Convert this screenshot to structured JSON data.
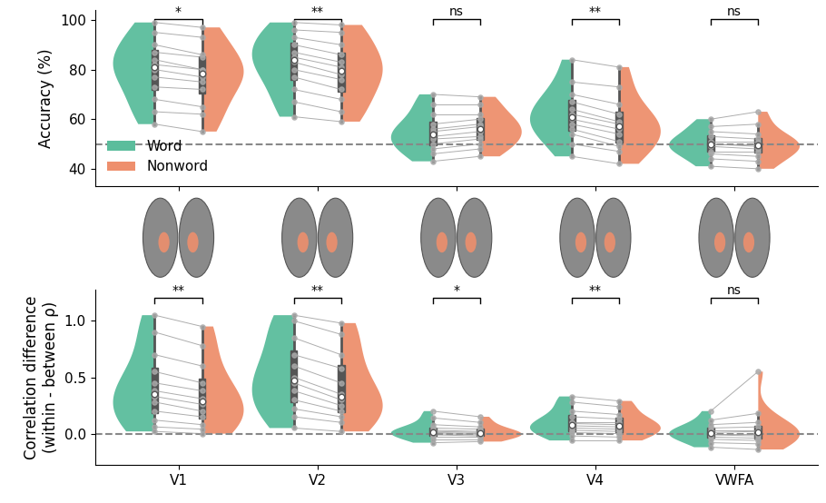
{
  "chart_data": [
    {
      "type": "violin",
      "ylabel": "Accuracy (%)",
      "categories": [
        "V1",
        "V2",
        "V3",
        "V4",
        "VWFA"
      ],
      "series": [
        {
          "name": "Word",
          "color": "#5bbd9c",
          "values": [
            [
              99,
              95,
              90,
              87,
              84,
              82,
              80,
              77,
              73,
              68,
              63,
              58
            ],
            [
              99,
              96,
              93,
              90,
              87,
              85,
              83,
              80,
              77,
              72,
              67,
              61
            ],
            [
              70,
              66,
              62,
              58,
              56,
              55,
              53,
              52,
              50,
              48,
              46,
              43
            ],
            [
              84,
              75,
              70,
              67,
              64,
              62,
              60,
              58,
              56,
              54,
              50,
              45
            ],
            [
              60,
              57,
              55,
              53,
              51,
              50,
              50,
              49,
              47,
              46,
              44,
              41
            ]
          ]
        },
        {
          "name": "Nonword",
          "color": "#ee8f6d",
          "values": [
            [
              97,
              93,
              86,
              85,
              80,
              80,
              77,
              75,
              72,
              65,
              62,
              55
            ],
            [
              98,
              95,
              90,
              86,
              83,
              81,
              78,
              76,
              72,
              68,
              63,
              59
            ],
            [
              69,
              66,
              62,
              60,
              58,
              57,
              55,
              53,
              52,
              50,
              48,
              45
            ],
            [
              81,
              73,
              66,
              62,
              59,
              58,
              56,
              54,
              51,
              49,
              47,
              42
            ],
            [
              63,
              58,
              54,
              52,
              51,
              50,
              49,
              48,
              47,
              45,
              43,
              40
            ]
          ]
        }
      ],
      "significance": [
        "*",
        "**",
        "ns",
        "**",
        "ns"
      ],
      "reference_line": 50,
      "ylim": [
        33,
        104
      ],
      "yticks": [
        40,
        60,
        80,
        100
      ],
      "tick_labels": "y",
      "legend": "lower left"
    },
    {
      "type": "violin",
      "ylabel": "Correlation difference\n(within - between ρ)",
      "categories": [
        "V1",
        "V2",
        "V3",
        "V4",
        "VWFA"
      ],
      "series": [
        {
          "name": "Word",
          "color": "#5bbd9c",
          "values": [
            [
              1.05,
              0.9,
              0.7,
              0.55,
              0.45,
              0.38,
              0.33,
              0.28,
              0.2,
              0.12,
              0.06,
              0.02
            ],
            [
              1.05,
              1.0,
              0.85,
              0.7,
              0.6,
              0.5,
              0.45,
              0.38,
              0.3,
              0.22,
              0.15,
              0.05
            ],
            [
              0.2,
              0.14,
              0.08,
              0.05,
              0.03,
              0.02,
              0.01,
              0.0,
              -0.01,
              -0.03,
              -0.05,
              -0.08
            ],
            [
              0.33,
              0.28,
              0.2,
              0.15,
              0.1,
              0.09,
              0.07,
              0.05,
              0.03,
              0.01,
              -0.02,
              -0.06
            ],
            [
              0.2,
              0.12,
              0.08,
              0.05,
              0.03,
              0.01,
              0.0,
              -0.01,
              -0.03,
              -0.05,
              -0.08,
              -0.12
            ]
          ]
        },
        {
          "name": "Nonword",
          "color": "#ee8f6d",
          "values": [
            [
              0.95,
              0.78,
              0.6,
              0.45,
              0.38,
              0.31,
              0.26,
              0.2,
              0.15,
              0.08,
              0.04,
              0.0
            ],
            [
              0.98,
              0.88,
              0.7,
              0.58,
              0.45,
              0.35,
              0.3,
              0.25,
              0.2,
              0.15,
              0.1,
              0.02
            ],
            [
              0.15,
              0.1,
              0.06,
              0.04,
              0.02,
              0.01,
              0.0,
              -0.01,
              -0.02,
              -0.03,
              -0.05,
              -0.07
            ],
            [
              0.29,
              0.24,
              0.17,
              0.13,
              0.1,
              0.08,
              0.06,
              0.04,
              0.02,
              0.0,
              -0.03,
              -0.06
            ],
            [
              0.55,
              0.18,
              0.1,
              0.06,
              0.03,
              0.02,
              0.0,
              -0.02,
              -0.04,
              -0.06,
              -0.09,
              -0.14
            ]
          ]
        }
      ],
      "significance": [
        "**",
        "**",
        "*",
        "**",
        "ns"
      ],
      "reference_line": 0,
      "ylim": [
        -0.28,
        1.28
      ],
      "yticks": [
        {
          "value": 0,
          "label": "0.0"
        },
        {
          "value": 0.5,
          "label": "0.5"
        },
        {
          "value": 1,
          "label": "1.0"
        }
      ],
      "tick_labels": true
    }
  ]
}
